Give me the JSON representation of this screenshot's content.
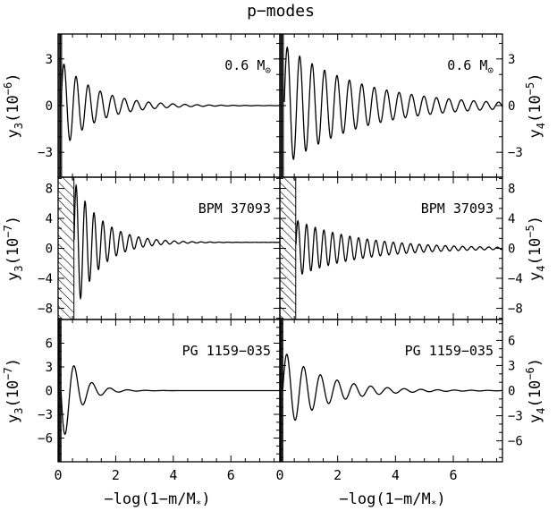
{
  "figure": {
    "title": "p−modes",
    "xlabel": "−log(1−m/M*)",
    "xlabel_main": "−log(1−m/M",
    "xlabel_sub": "*",
    "xlabel_tail": ")",
    "xlim": [
      0,
      7.7
    ],
    "xticks": [
      0,
      2,
      4,
      6
    ]
  },
  "chart_data": [
    {
      "type": "line",
      "panel": "top-left",
      "label": "0.6 M",
      "label_symbol": "⊙",
      "ylabel": "y3(10^-6)",
      "ylabel_parts": {
        "var": "y",
        "sub": "3",
        "open": "(10",
        "exp": "−6",
        "close": ")"
      },
      "ylim": [
        -4.6,
        4.6
      ],
      "yticks": [
        -3,
        0,
        3
      ],
      "ytick_side": "left",
      "hatch": null,
      "series": [
        {
          "x0": 0.1,
          "amp": 2.9,
          "period": 0.42,
          "tau": 1.2,
          "env_power": 1.0,
          "spike": [
            0.0,
            0.12
          ]
        }
      ]
    },
    {
      "type": "line",
      "panel": "top-right",
      "label": "0.6 M",
      "label_symbol": "⊙",
      "ylabel": "y4(10^-5)",
      "ylabel_parts": {
        "var": "y",
        "sub": "4",
        "open": "(10",
        "exp": "−5",
        "close": ")"
      },
      "ylim": [
        -4.6,
        4.6
      ],
      "yticks": [
        -3,
        0,
        3
      ],
      "ytick_side": "right",
      "hatch": null,
      "series": [
        {
          "x0": 0.15,
          "amp": 3.9,
          "period": 0.43,
          "tau": 2.6,
          "env_power": 1.0,
          "spike": [
            0.0,
            0.12
          ]
        }
      ]
    },
    {
      "type": "line",
      "panel": "middle-left",
      "label": "BPM 37093",
      "ylabel": "y3(10^-7)",
      "ylabel_parts": {
        "var": "y",
        "sub": "3",
        "open": "(10",
        "exp": "−7",
        "close": ")"
      },
      "ylim": [
        -9.5,
        9.5
      ],
      "yticks": [
        -8,
        -4,
        0,
        4,
        8
      ],
      "ytick_side": "left",
      "hatch": [
        0,
        0.55
      ],
      "series": [
        {
          "x0": 0.55,
          "amp": 9.0,
          "period": 0.31,
          "tau": 0.9,
          "env_power": 1.0,
          "offset": 0.8,
          "spike": null
        }
      ]
    },
    {
      "type": "line",
      "panel": "middle-right",
      "label": "BPM 37093",
      "ylabel": "y4(10^-5)",
      "ylabel_parts": {
        "var": "y",
        "sub": "4",
        "open": "(10",
        "exp": "−5",
        "close": ")"
      },
      "ylim": [
        -9.5,
        9.5
      ],
      "yticks": [
        -8,
        -4,
        0,
        4,
        8
      ],
      "ytick_side": "right",
      "hatch": [
        0,
        0.55
      ],
      "series": [
        {
          "x0": 0.55,
          "amp": 3.8,
          "period": 0.3,
          "tau": 2.2,
          "env_power": 1.0,
          "offset": 0.0,
          "spike": null
        }
      ]
    },
    {
      "type": "line",
      "panel": "bottom-left",
      "label": "PG 1159−035",
      "ylabel": "y3(10^-7)",
      "ylabel_parts": {
        "var": "y",
        "sub": "3",
        "open": "(10",
        "exp": "−7",
        "close": ")"
      },
      "ylim": [
        -9.0,
        9.0
      ],
      "yticks": [
        -6,
        -3,
        0,
        3,
        6
      ],
      "ytick_side": "left",
      "hatch": null,
      "series": [
        {
          "x0": 0.1,
          "amp": 7.2,
          "period": 0.62,
          "tau": 0.55,
          "env_power": 1.0,
          "offset": 0.0,
          "phase": 3.14,
          "spike": [
            0.0,
            0.1
          ]
        }
      ]
    },
    {
      "type": "line",
      "panel": "bottom-right",
      "label": "PG 1159−035",
      "ylabel": "y4(10^-6)",
      "ylabel_parts": {
        "var": "y",
        "sub": "4",
        "open": "(10",
        "exp": "−6",
        "close": ")"
      },
      "ylim": [
        -8.5,
        8.5
      ],
      "yticks": [
        -6,
        -3,
        0,
        3,
        6
      ],
      "ytick_side": "right",
      "hatch": null,
      "series": [
        {
          "x0": 0.1,
          "amp": 4.8,
          "period": 0.58,
          "tau": 1.4,
          "env_power": 1.0,
          "offset": 0.0,
          "phase": 0.0,
          "spike": [
            0.0,
            0.1
          ]
        }
      ]
    }
  ]
}
